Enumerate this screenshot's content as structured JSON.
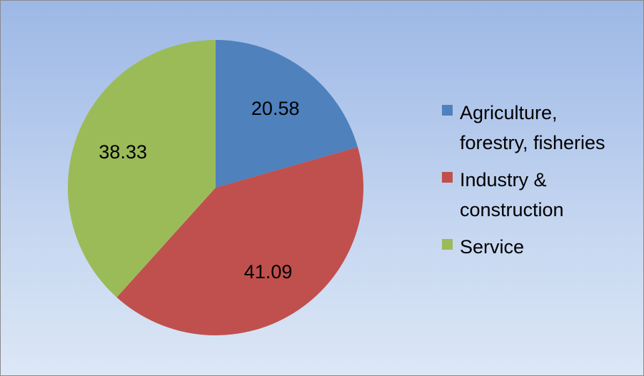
{
  "chart_data": {
    "type": "pie",
    "categories": [
      "Agriculture, forestry, fisheries",
      "Industry & construction",
      "Service"
    ],
    "values": [
      20.58,
      41.09,
      38.33
    ],
    "data_labels": [
      "20.58",
      "41.09",
      "38.33"
    ],
    "colors": [
      "#4f81bd",
      "#c0504d",
      "#9bbb59"
    ],
    "legend": {
      "placement": "right",
      "entries": [
        {
          "line1": "Agriculture,",
          "line2": "forestry, fisheries"
        },
        {
          "line1": "Industry &",
          "line2": "construction"
        },
        {
          "line1": "Service",
          "line2": ""
        }
      ]
    },
    "title": "",
    "start_angle_deg": 0,
    "direction": "clockwise"
  }
}
